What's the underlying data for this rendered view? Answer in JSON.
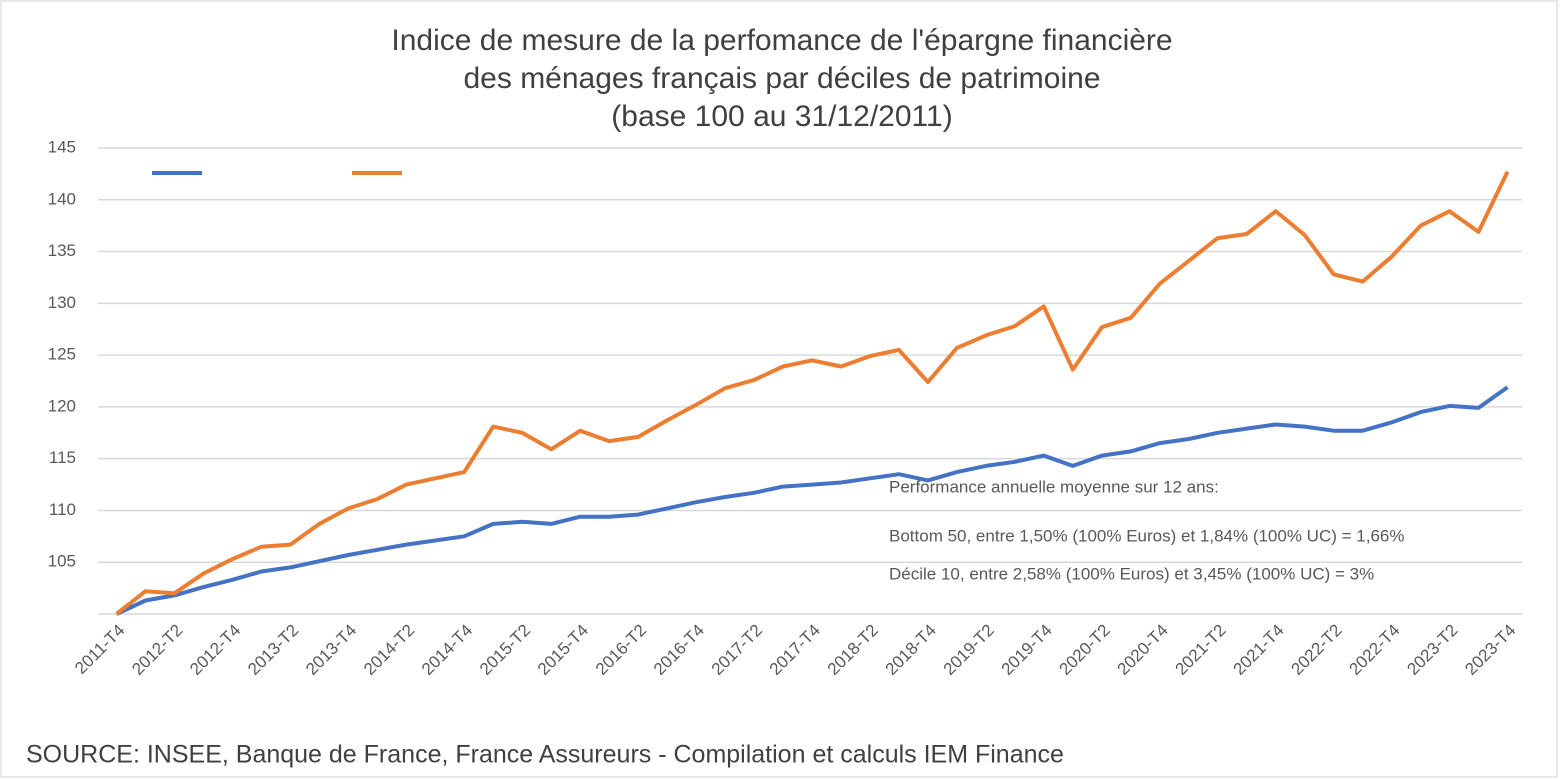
{
  "chart_data": {
    "type": "line",
    "title": [
      "Indice de mesure de la perfomance de l'épargne financière",
      "des ménages  français par déciles de patrimoine",
      "(base 100 au 31/12/2011)"
    ],
    "categories": [
      "2011-T4",
      null,
      "2012-T2",
      null,
      "2012-T4",
      null,
      "2013-T2",
      null,
      "2013-T4",
      null,
      "2014-T2",
      null,
      "2014-T4",
      null,
      "2015-T2",
      null,
      "2015-T4",
      null,
      "2016-T2",
      null,
      "2016-T4",
      null,
      "2017-T2",
      null,
      "2017-T4",
      null,
      "2018-T2",
      null,
      "2018-T4",
      null,
      "2019-T2",
      null,
      "2019-T4",
      null,
      "2020-T2",
      null,
      "2020-T4",
      null,
      "2021-T2",
      null,
      "2021-T4",
      null,
      "2022-T2",
      null,
      "2022-T4",
      null,
      "2023-T2",
      null,
      "2023-T4"
    ],
    "series": [
      {
        "color": "#4472c4",
        "values": [
          100,
          101.3,
          101.8,
          102.6,
          103.3,
          104.1,
          104.5,
          105.1,
          105.7,
          106.2,
          106.7,
          107.1,
          107.5,
          108.7,
          108.9,
          108.7,
          109.4,
          109.4,
          109.6,
          110.2,
          110.8,
          111.3,
          111.7,
          112.3,
          112.5,
          112.7,
          113.1,
          113.5,
          112.9,
          113.7,
          114.3,
          114.7,
          115.3,
          114.3,
          115.3,
          115.7,
          116.5,
          116.9,
          117.5,
          117.9,
          118.3,
          118.1,
          117.7,
          117.7,
          118.5,
          119.5,
          120.1,
          119.9,
          121.9
        ]
      },
      {
        "color": "#ed7d31",
        "values": [
          100,
          102.2,
          102.0,
          103.9,
          105.3,
          106.5,
          106.7,
          108.7,
          110.2,
          111.1,
          112.5,
          113.1,
          113.7,
          118.1,
          117.5,
          115.9,
          117.7,
          116.7,
          117.1,
          118.7,
          120.2,
          121.8,
          122.6,
          123.9,
          124.5,
          123.9,
          124.9,
          125.5,
          122.4,
          125.7,
          126.9,
          127.8,
          129.7,
          123.6,
          127.7,
          128.6,
          131.9,
          134.1,
          136.3,
          136.7,
          138.9,
          136.6,
          132.8,
          132.1,
          134.5,
          137.5,
          138.9,
          136.9,
          142.7
        ]
      }
    ],
    "ylim": [
      100,
      145
    ],
    "yticks": [
      105,
      110,
      115,
      120,
      125,
      130,
      135,
      140,
      145
    ],
    "grid": true,
    "legend": "top-left",
    "annotations": [
      "Performance annuelle moyenne sur 12 ans:",
      "Bottom 50, entre 1,50% (100% Euros) et 1,84% (100% UC) = 1,66%",
      "Décile 10, entre 2,58% (100% Euros) et 3,45% (100% UC) = 3%"
    ],
    "source": "SOURCE: INSEE, Banque de France, France Assureurs - Compilation et calculs IEM Finance"
  }
}
